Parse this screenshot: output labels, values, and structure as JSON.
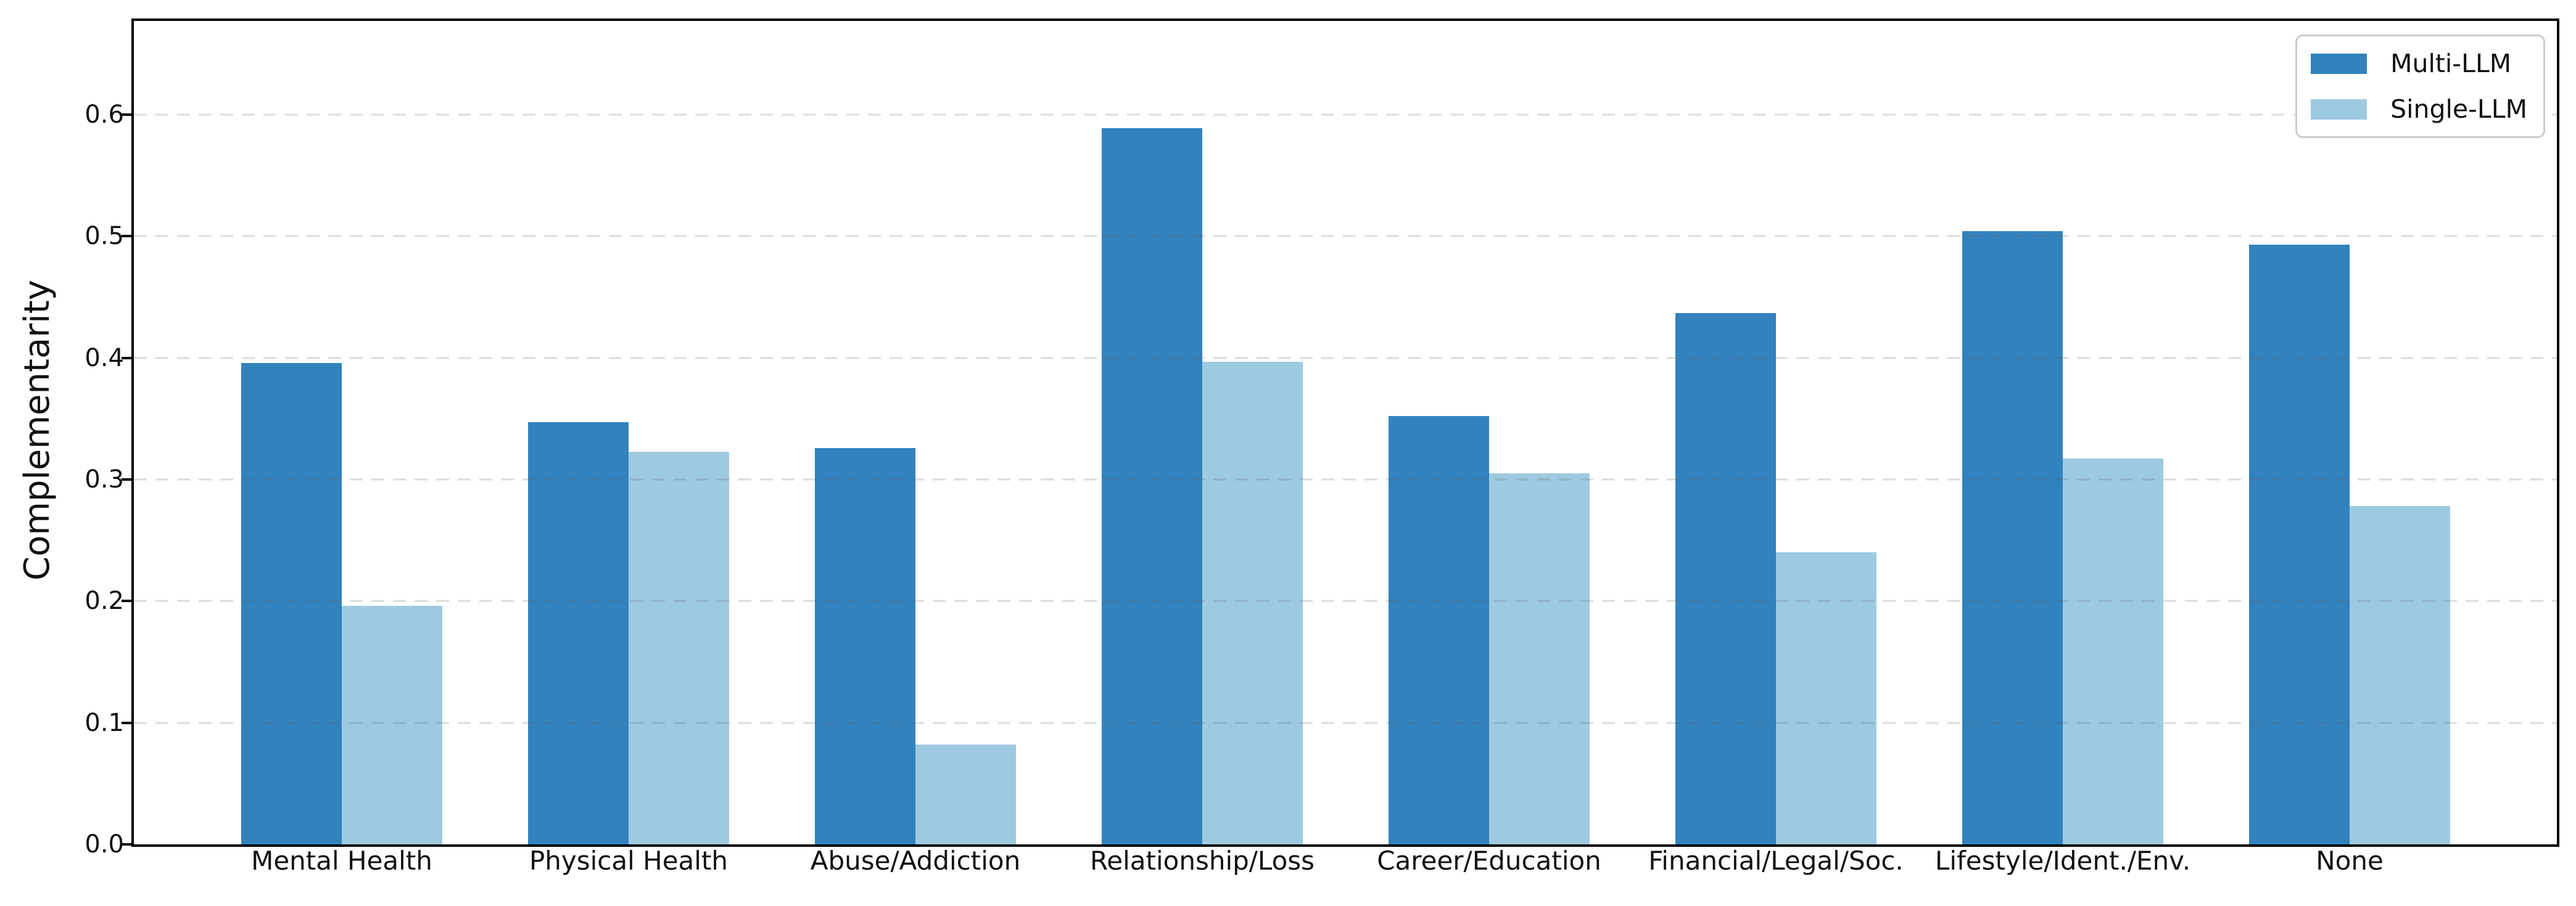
{
  "chart_data": {
    "type": "bar",
    "title": "",
    "xlabel": "",
    "ylabel": "Complementarity",
    "ylim": [
      0,
      0.677
    ],
    "yticks": [
      "0.0",
      "0.1",
      "0.2",
      "0.3",
      "0.4",
      "0.5",
      "0.6"
    ],
    "ytick_values": [
      0.0,
      0.1,
      0.2,
      0.3,
      0.4,
      0.5,
      0.6
    ],
    "grid": "dashed-horizontal",
    "legend_position": "upper-right",
    "categories": [
      "Mental Health",
      "Physical Health",
      "Abuse/Addiction",
      "Relationship/Loss",
      "Career/Education",
      "Financial/Legal/Soc.",
      "Lifestyle/Ident./Env.",
      "None"
    ],
    "series": [
      {
        "name": "Multi-LLM",
        "color": "#3182bd",
        "values": [
          0.396,
          0.347,
          0.326,
          0.589,
          0.352,
          0.437,
          0.504,
          0.493
        ]
      },
      {
        "name": "Single-LLM",
        "color": "#9ecae1",
        "values": [
          0.196,
          0.323,
          0.082,
          0.397,
          0.305,
          0.24,
          0.317,
          0.278
        ]
      }
    ]
  }
}
